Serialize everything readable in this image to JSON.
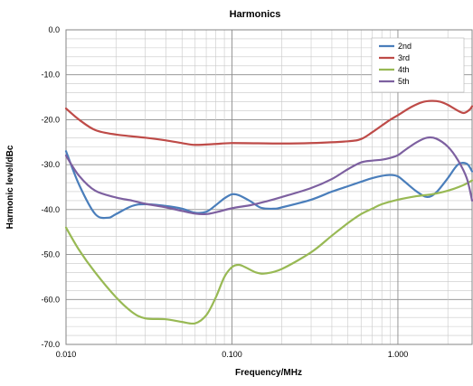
{
  "chart_data": {
    "type": "line",
    "title": "Harmonics",
    "xlabel": "Frequency/MHz",
    "ylabel": "Harmonic level/dBc",
    "x_scale": "log",
    "xlim": [
      0.01,
      2.8
    ],
    "ylim": [
      -70,
      0
    ],
    "x_ticks": [
      0.01,
      0.1,
      1
    ],
    "x_tick_labels": [
      "0.010",
      "0.100",
      "1.000"
    ],
    "y_ticks": [
      0,
      -10,
      -20,
      -30,
      -40,
      -50,
      -60,
      -70
    ],
    "y_tick_labels": [
      "0.0",
      "-10.0",
      "-20.0",
      "-30.0",
      "-40.0",
      "-50.0",
      "-60.0",
      "-70.0"
    ],
    "grid": true,
    "legend_position": "top-right",
    "series": [
      {
        "name": "2nd",
        "color": "#4a7ebb",
        "points": [
          [
            0.01,
            -27.0
          ],
          [
            0.012,
            -34.5
          ],
          [
            0.015,
            -41.0
          ],
          [
            0.018,
            -41.8
          ],
          [
            0.02,
            -41.0
          ],
          [
            0.025,
            -39.2
          ],
          [
            0.03,
            -38.8
          ],
          [
            0.04,
            -39.2
          ],
          [
            0.05,
            -39.8
          ],
          [
            0.06,
            -40.7
          ],
          [
            0.07,
            -40.5
          ],
          [
            0.08,
            -39.0
          ],
          [
            0.09,
            -37.5
          ],
          [
            0.1,
            -36.6
          ],
          [
            0.11,
            -36.8
          ],
          [
            0.13,
            -38.2
          ],
          [
            0.15,
            -39.6
          ],
          [
            0.18,
            -39.8
          ],
          [
            0.2,
            -39.5
          ],
          [
            0.3,
            -37.8
          ],
          [
            0.4,
            -36.0
          ],
          [
            0.5,
            -34.8
          ],
          [
            0.6,
            -33.8
          ],
          [
            0.7,
            -33.0
          ],
          [
            0.8,
            -32.5
          ],
          [
            0.9,
            -32.3
          ],
          [
            1.0,
            -32.6
          ],
          [
            1.1,
            -33.8
          ],
          [
            1.3,
            -36.0
          ],
          [
            1.5,
            -37.2
          ],
          [
            1.7,
            -36.2
          ],
          [
            2.0,
            -33.0
          ],
          [
            2.3,
            -30.0
          ],
          [
            2.6,
            -29.8
          ],
          [
            2.8,
            -31.5
          ]
        ]
      },
      {
        "name": "3rd",
        "color": "#be4b48",
        "points": [
          [
            0.01,
            -17.5
          ],
          [
            0.012,
            -20.0
          ],
          [
            0.015,
            -22.3
          ],
          [
            0.02,
            -23.3
          ],
          [
            0.03,
            -24.0
          ],
          [
            0.04,
            -24.6
          ],
          [
            0.05,
            -25.2
          ],
          [
            0.06,
            -25.6
          ],
          [
            0.08,
            -25.4
          ],
          [
            0.1,
            -25.2
          ],
          [
            0.2,
            -25.3
          ],
          [
            0.3,
            -25.2
          ],
          [
            0.5,
            -24.8
          ],
          [
            0.6,
            -24.3
          ],
          [
            0.7,
            -22.8
          ],
          [
            0.8,
            -21.3
          ],
          [
            0.9,
            -20.0
          ],
          [
            1.0,
            -19.0
          ],
          [
            1.2,
            -17.2
          ],
          [
            1.4,
            -16.1
          ],
          [
            1.6,
            -15.8
          ],
          [
            1.8,
            -16.0
          ],
          [
            2.0,
            -16.7
          ],
          [
            2.3,
            -18.0
          ],
          [
            2.5,
            -18.5
          ],
          [
            2.7,
            -17.8
          ],
          [
            2.8,
            -17.0
          ]
        ]
      },
      {
        "name": "4th",
        "color": "#98b954",
        "points": [
          [
            0.01,
            -44.0
          ],
          [
            0.012,
            -49.0
          ],
          [
            0.015,
            -54.0
          ],
          [
            0.02,
            -59.5
          ],
          [
            0.025,
            -62.8
          ],
          [
            0.03,
            -64.2
          ],
          [
            0.04,
            -64.4
          ],
          [
            0.05,
            -65.0
          ],
          [
            0.06,
            -65.3
          ],
          [
            0.07,
            -63.5
          ],
          [
            0.08,
            -59.5
          ],
          [
            0.09,
            -55.0
          ],
          [
            0.1,
            -52.8
          ],
          [
            0.11,
            -52.3
          ],
          [
            0.12,
            -52.8
          ],
          [
            0.14,
            -54.0
          ],
          [
            0.16,
            -54.2
          ],
          [
            0.2,
            -53.2
          ],
          [
            0.3,
            -49.5
          ],
          [
            0.4,
            -45.8
          ],
          [
            0.5,
            -43.0
          ],
          [
            0.6,
            -41.0
          ],
          [
            0.7,
            -39.8
          ],
          [
            0.8,
            -38.8
          ],
          [
            1.0,
            -37.8
          ],
          [
            1.3,
            -37.0
          ],
          [
            1.6,
            -36.6
          ],
          [
            2.0,
            -35.8
          ],
          [
            2.5,
            -34.5
          ],
          [
            2.8,
            -33.5
          ]
        ]
      },
      {
        "name": "5th",
        "color": "#7d60a0",
        "points": [
          [
            0.01,
            -28.0
          ],
          [
            0.012,
            -32.5
          ],
          [
            0.015,
            -35.8
          ],
          [
            0.02,
            -37.3
          ],
          [
            0.025,
            -38.0
          ],
          [
            0.03,
            -38.7
          ],
          [
            0.04,
            -39.5
          ],
          [
            0.05,
            -40.3
          ],
          [
            0.06,
            -40.9
          ],
          [
            0.07,
            -41.0
          ],
          [
            0.08,
            -40.6
          ],
          [
            0.1,
            -39.7
          ],
          [
            0.13,
            -39.0
          ],
          [
            0.16,
            -38.2
          ],
          [
            0.2,
            -37.2
          ],
          [
            0.3,
            -35.2
          ],
          [
            0.4,
            -33.2
          ],
          [
            0.5,
            -31.0
          ],
          [
            0.6,
            -29.5
          ],
          [
            0.7,
            -29.1
          ],
          [
            0.8,
            -28.9
          ],
          [
            0.9,
            -28.5
          ],
          [
            1.0,
            -27.9
          ],
          [
            1.1,
            -26.8
          ],
          [
            1.3,
            -25.0
          ],
          [
            1.5,
            -24.0
          ],
          [
            1.7,
            -24.2
          ],
          [
            2.0,
            -26.0
          ],
          [
            2.3,
            -29.0
          ],
          [
            2.6,
            -33.0
          ],
          [
            2.8,
            -38.0
          ]
        ]
      }
    ]
  }
}
